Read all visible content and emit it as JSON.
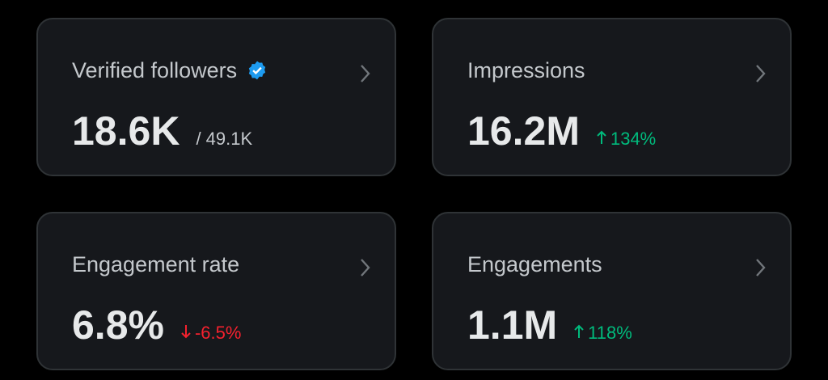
{
  "cards": [
    {
      "title": "Verified followers",
      "value": "18.6K",
      "secondary": "/ 49.1K"
    },
    {
      "title": "Impressions",
      "value": "16.2M",
      "change": "134%"
    },
    {
      "title": "Engagement rate",
      "value": "6.8%",
      "change": "-6.5%"
    },
    {
      "title": "Engagements",
      "value": "1.1M",
      "change": "118%"
    }
  ]
}
